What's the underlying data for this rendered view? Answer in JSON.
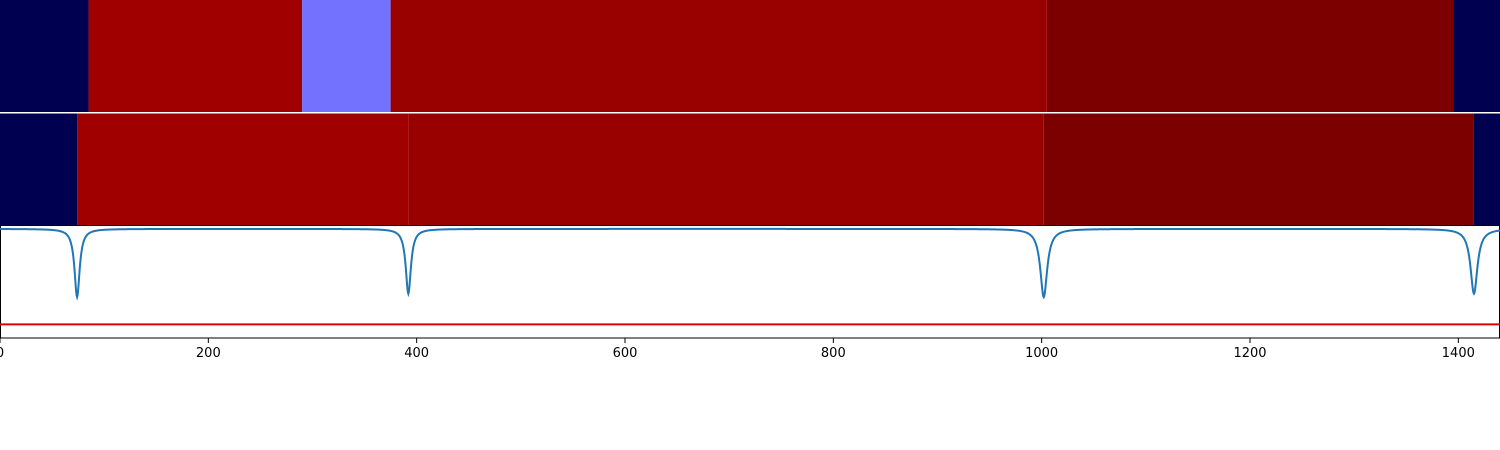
{
  "chart_data": [
    {
      "type": "heatmap",
      "panel": "top-band",
      "x_range": [
        0,
        1440
      ],
      "segments": [
        {
          "start": 0,
          "end": 85,
          "color": "#000050"
        },
        {
          "start": 85,
          "end": 290,
          "color": "#a00000"
        },
        {
          "start": 290,
          "end": 375,
          "color": "#7272ff"
        },
        {
          "start": 375,
          "end": 1005,
          "color": "#990000"
        },
        {
          "start": 1005,
          "end": 1395,
          "color": "#7d0000"
        },
        {
          "start": 1395,
          "end": 1440,
          "color": "#000050"
        }
      ]
    },
    {
      "type": "heatmap",
      "panel": "middle-band",
      "x_range": [
        0,
        1440
      ],
      "segments": [
        {
          "start": 0,
          "end": 74,
          "color": "#000050"
        },
        {
          "start": 74,
          "end": 392,
          "color": "#a00000"
        },
        {
          "start": 392,
          "end": 1002,
          "color": "#990000"
        },
        {
          "start": 1002,
          "end": 1415,
          "color": "#7d0000"
        },
        {
          "start": 1415,
          "end": 1440,
          "color": "#000050"
        }
      ]
    },
    {
      "type": "line",
      "panel": "bottom-plot",
      "x_range": [
        0,
        1440
      ],
      "y_range": [
        -1.6,
        0.05
      ],
      "grid": false,
      "series": [
        {
          "color": "#1f77b4",
          "dips": [
            {
              "center": 74,
              "depth": -1.0,
              "width": 3
            },
            {
              "center": 392,
              "depth": -0.95,
              "width": 3
            },
            {
              "center": 1002,
              "depth": -1.0,
              "width": 4
            },
            {
              "center": 1415,
              "depth": -0.95,
              "width": 4
            }
          ]
        }
      ],
      "threshold": {
        "y": -1.4,
        "color": "#e00000"
      },
      "xticks": [
        0,
        200,
        400,
        600,
        800,
        1000,
        1200,
        1400
      ]
    }
  ]
}
